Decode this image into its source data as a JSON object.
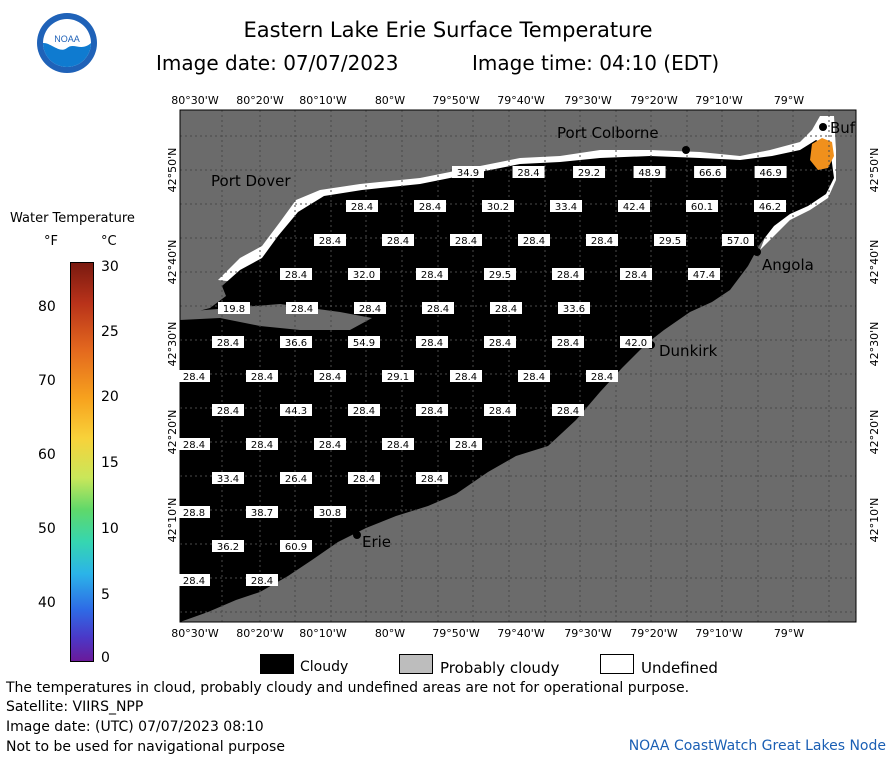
{
  "header": {
    "title": "Eastern Lake Erie Surface Temperature",
    "image_date": "Image date: 07/07/2023",
    "image_time": "Image time: 04:10 (EDT)",
    "logo_text": "NOAA"
  },
  "map": {
    "lon_labels": [
      "80°30'W",
      "80°20'W",
      "80°10'W",
      "80°W",
      "79°50'W",
      "79°40'W",
      "79°30'W",
      "79°20'W",
      "79°10'W",
      "79°W"
    ],
    "lat_labels": [
      "42°50'N",
      "42°40'N",
      "42°30'N",
      "42°20'N",
      "42°10'N"
    ],
    "places": {
      "port_colborne": "Port Colborne",
      "port_dover": "Port Dover",
      "angola": "Angola",
      "dunkirk": "Dunkirk",
      "erie": "Erie",
      "buffalo": "Buf"
    },
    "temperatures": [
      [
        "34.9",
        "28.4",
        "29.2",
        "48.9",
        "66.6",
        "46.9"
      ],
      [
        "28.4",
        "28.4",
        "30.2",
        "33.4",
        "42.4",
        "60.1",
        "46.2"
      ],
      [
        "28.4",
        "28.4",
        "28.4",
        "28.4",
        "28.4",
        "29.5",
        "57.0"
      ],
      [
        "28.4",
        "32.0",
        "28.4",
        "29.5",
        "28.4",
        "28.4",
        "47.4"
      ],
      [
        "19.8",
        "28.4",
        "28.4",
        "28.4",
        "28.4",
        "33.6"
      ],
      [
        "28.4",
        "36.6",
        "54.9",
        "28.4",
        "28.4",
        "28.4",
        "42.0"
      ],
      [
        "28.4",
        "28.4",
        "28.4",
        "29.1",
        "28.4",
        "28.4",
        "28.4"
      ],
      [
        "28.4",
        "44.3",
        "28.4",
        "28.4",
        "28.4",
        "28.4"
      ],
      [
        "28.4",
        "28.4",
        "28.4",
        "28.4",
        "28.4"
      ],
      [
        "33.4",
        "26.4",
        "28.4",
        "28.4"
      ],
      [
        "28.8",
        "38.7",
        "30.8"
      ],
      [
        "36.2",
        "60.9"
      ],
      [
        "28.4",
        "28.4"
      ]
    ],
    "colors": {
      "land": "#6b6b6b",
      "cloud": "#000000",
      "grid": "#4a4a4a",
      "warm_patch": "#f0901c"
    }
  },
  "legend": {
    "title": "Water Temperature",
    "unit_f": "°F",
    "unit_c": "°C",
    "f_ticks": [
      "80",
      "70",
      "60",
      "50",
      "40"
    ],
    "c_ticks": [
      "30",
      "25",
      "20",
      "15",
      "10",
      "5",
      "0"
    ]
  },
  "key": {
    "cloudy": "Cloudy",
    "probably_cloudy": "Probably cloudy",
    "undefined": "Undefined"
  },
  "footer": {
    "note": "The temperatures in cloud, probably cloudy and undefined areas are not for operational purpose.",
    "satellite": "Satellite: VIIRS_NPP",
    "utc": "Image date: (UTC) 07/07/2023  08:10",
    "nav": "Not to be used for navigational purpose",
    "credit": "NOAA CoastWatch Great Lakes Node"
  }
}
